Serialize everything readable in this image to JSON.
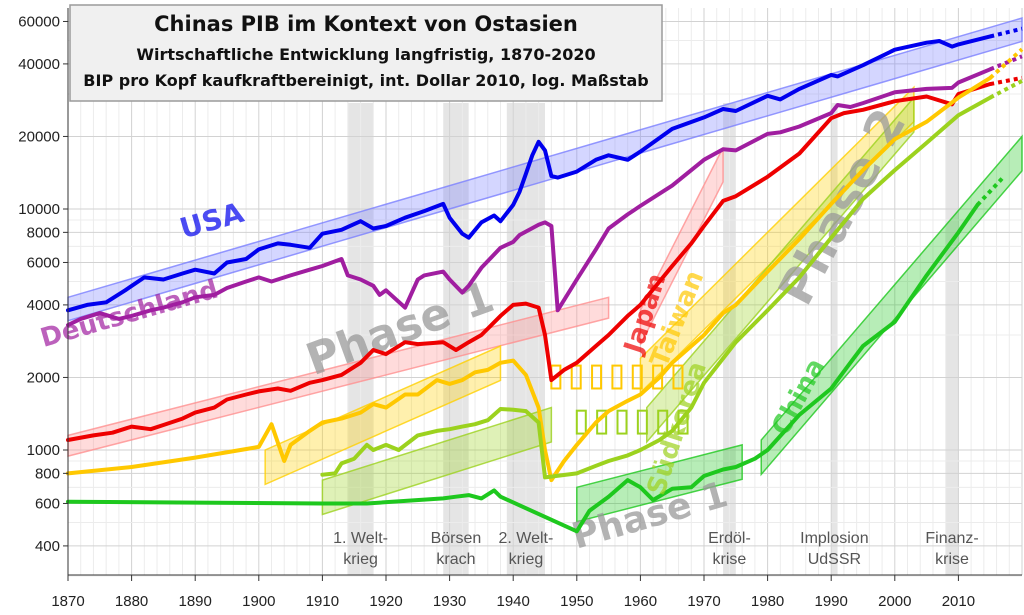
{
  "chart_data": {
    "type": "line",
    "title": "Chinas PIB im Kontext von Ostasien",
    "subtitle_1": "Wirtschaftliche Entwicklung langfristig, 1870-2020",
    "subtitle_2": "BIP pro Kopf kaufkraftbereinigt, int. Dollar 2010, log. Maßstab",
    "xlim": [
      1870,
      2020
    ],
    "ylim": [
      300,
      65000
    ],
    "yscale": "log",
    "grid": true,
    "x_ticks": [
      "1870",
      "1880",
      "1890",
      "1900",
      "1910",
      "1920",
      "1930",
      "1940",
      "1950",
      "1960",
      "1970",
      "1980",
      "1990",
      "2000",
      "2010"
    ],
    "y_ticks": [
      {
        "value": 400,
        "label": "400"
      },
      {
        "value": 600,
        "label": "600"
      },
      {
        "value": 800,
        "label": "800"
      },
      {
        "value": 1000,
        "label": "1000"
      },
      {
        "value": 2000,
        "label": "2000"
      },
      {
        "value": 4000,
        "label": "4000"
      },
      {
        "value": 6000,
        "label": "6000"
      },
      {
        "value": 8000,
        "label": "8000"
      },
      {
        "value": 10000,
        "label": "10000"
      },
      {
        "value": 20000,
        "label": "20000"
      },
      {
        "value": 40000,
        "label": "40000"
      },
      {
        "value": 60000,
        "label": "60000"
      }
    ],
    "events": [
      {
        "start": 1914,
        "end": 1918,
        "label_1": "1. Welt-",
        "label_2": "krieg"
      },
      {
        "start": 1929,
        "end": 1933,
        "label_1": "Börsen",
        "label_2": "krach"
      },
      {
        "start": 1939,
        "end": 1945,
        "label_1": "2. Welt-",
        "label_2": "krieg"
      },
      {
        "start": 1973,
        "end": 1975,
        "label_1": "Erdöl-",
        "label_2": "krise"
      },
      {
        "start": 1990,
        "end": 1991,
        "label_1": "Implosion",
        "label_2": "UdSSR"
      },
      {
        "start": 2008,
        "end": 2010,
        "label_1": "Finanz-",
        "label_2": "krise"
      }
    ],
    "series": [
      {
        "name": "USA",
        "color": "#0000ee",
        "x": [
          1870,
          1873,
          1876,
          1879,
          1882,
          1885,
          1888,
          1890,
          1893,
          1895,
          1898,
          1900,
          1903,
          1905,
          1908,
          1910,
          1913,
          1916,
          1918,
          1920,
          1923,
          1926,
          1929,
          1930,
          1932,
          1933,
          1935,
          1937,
          1938,
          1940,
          1941,
          1942,
          1943,
          1944,
          1945,
          1946,
          1947,
          1950,
          1953,
          1955,
          1958,
          1960,
          1965,
          1970,
          1973,
          1975,
          1980,
          1982,
          1985,
          1990,
          1991,
          1995,
          2000,
          2005,
          2007,
          2009,
          2010,
          2015
        ],
        "y": [
          3800,
          4000,
          4100,
          4600,
          5200,
          5100,
          5400,
          5600,
          5400,
          6000,
          6200,
          6800,
          7200,
          7100,
          6900,
          7900,
          8200,
          8900,
          8300,
          8500,
          9200,
          9800,
          10500,
          9200,
          7900,
          7600,
          8800,
          9400,
          8900,
          10400,
          11800,
          14000,
          16700,
          19000,
          17500,
          13700,
          13500,
          14300,
          16000,
          16700,
          16000,
          17300,
          21500,
          24000,
          26000,
          25500,
          29500,
          28500,
          31500,
          36000,
          35500,
          39500,
          45800,
          49000,
          49800,
          47200,
          48200,
          52000
        ],
        "label_x": 1893,
        "label_y": 8200,
        "label_rotation": -16,
        "label_size": 28
      },
      {
        "name": "Deutschland",
        "color": "#a01ea0",
        "x": [
          1870,
          1872,
          1875,
          1878,
          1880,
          1883,
          1885,
          1888,
          1890,
          1893,
          1895,
          1898,
          1900,
          1902,
          1905,
          1908,
          1910,
          1913,
          1914,
          1916,
          1918,
          1919,
          1920,
          1923,
          1925,
          1926,
          1929,
          1930,
          1932,
          1933,
          1935,
          1938,
          1940,
          1941,
          1944,
          1945,
          1946,
          1947,
          1950,
          1953,
          1955,
          1958,
          1960,
          1965,
          1970,
          1973,
          1975,
          1980,
          1982,
          1985,
          1990,
          1991,
          1993,
          1995,
          2000,
          2005,
          2009,
          2010,
          2015
        ],
        "y": [
          3300,
          3500,
          3700,
          3500,
          3600,
          3800,
          3900,
          4100,
          4300,
          4400,
          4700,
          5000,
          5200,
          5000,
          5300,
          5600,
          5800,
          6200,
          5300,
          5100,
          4800,
          4400,
          4600,
          3900,
          5100,
          5300,
          5500,
          5100,
          4500,
          4800,
          5700,
          6900,
          7300,
          7800,
          8600,
          8800,
          8500,
          3800,
          5100,
          6800,
          8300,
          9500,
          10300,
          12500,
          16000,
          17700,
          17500,
          20500,
          20800,
          22000,
          25000,
          27000,
          26500,
          27500,
          30500,
          31500,
          31800,
          33500,
          38000
        ],
        "label_x": 1880,
        "label_y": 3400,
        "label_rotation": -16,
        "label_size": 26
      },
      {
        "name": "Japan",
        "color": "#ee0000",
        "x": [
          1870,
          1874,
          1877,
          1880,
          1883,
          1885,
          1888,
          1890,
          1893,
          1895,
          1898,
          1900,
          1903,
          1905,
          1908,
          1910,
          1913,
          1916,
          1918,
          1920,
          1923,
          1925,
          1929,
          1931,
          1933,
          1935,
          1938,
          1940,
          1942,
          1944,
          1945,
          1946,
          1948,
          1950,
          1953,
          1955,
          1958,
          1960,
          1963,
          1965,
          1968,
          1970,
          1973,
          1975,
          1980,
          1985,
          1990,
          1992,
          1995,
          2000,
          2005,
          2009,
          2010,
          2015
        ],
        "y": [
          1100,
          1150,
          1180,
          1250,
          1220,
          1270,
          1350,
          1430,
          1500,
          1620,
          1700,
          1750,
          1800,
          1760,
          1900,
          1950,
          2050,
          2300,
          2600,
          2500,
          2800,
          2750,
          2800,
          2600,
          2800,
          3000,
          3600,
          4000,
          4050,
          3900,
          3000,
          1950,
          2150,
          2300,
          2700,
          3000,
          3600,
          4000,
          5000,
          5800,
          7200,
          8500,
          10800,
          11300,
          13600,
          17000,
          23800,
          25000,
          25800,
          28000,
          29300,
          27200,
          30000,
          33000
        ],
        "label_x": 1962,
        "label_y": 3600,
        "label_rotation": -72,
        "label_size": 26
      },
      {
        "name": "Taiwan",
        "color": "#ffc800",
        "x": [
          1870,
          1880,
          1890,
          1900,
          1902,
          1904,
          1905,
          1908,
          1910,
          1913,
          1916,
          1918,
          1920,
          1923,
          1925,
          1928,
          1930,
          1932,
          1934,
          1936,
          1938,
          1940,
          1942,
          1944,
          1945,
          1946,
          1948,
          1950,
          1953,
          1955,
          1958,
          1960,
          1963,
          1965,
          1970,
          1973,
          1975,
          1980,
          1985,
          1990,
          1995,
          2000,
          2005,
          2010,
          2015
        ],
        "y": [
          800,
          850,
          930,
          1030,
          1280,
          900,
          1050,
          1200,
          1300,
          1350,
          1430,
          1550,
          1500,
          1700,
          1700,
          1950,
          1880,
          1950,
          2100,
          2150,
          2300,
          2350,
          2050,
          1500,
          1000,
          750,
          900,
          1050,
          1300,
          1450,
          1600,
          1700,
          2000,
          2300,
          3000,
          3700,
          4000,
          5500,
          7500,
          10500,
          14500,
          19500,
          23000,
          29000,
          35000
        ],
        "label_x": 1967,
        "label_y": 3400,
        "label_rotation": -68,
        "label_size": 26
      },
      {
        "name": "Südkorea",
        "color": "#9cd21e",
        "x": [
          1910,
          1912,
          1913,
          1915,
          1917,
          1918,
          1920,
          1922,
          1925,
          1928,
          1930,
          1932,
          1934,
          1936,
          1938,
          1940,
          1942,
          1944,
          1945,
          1950,
          1953,
          1955,
          1958,
          1960,
          1963,
          1965,
          1968,
          1970,
          1973,
          1975,
          1980,
          1985,
          1990,
          1995,
          2000,
          2005,
          2010,
          2015
        ],
        "y": [
          790,
          800,
          880,
          920,
          1050,
          1000,
          1050,
          1000,
          1150,
          1200,
          1220,
          1250,
          1280,
          1330,
          1480,
          1470,
          1450,
          1300,
          770,
          800,
          860,
          900,
          950,
          1000,
          1100,
          1200,
          1500,
          1900,
          2400,
          2800,
          3800,
          5200,
          7600,
          11000,
          14500,
          18800,
          24500,
          29000
        ],
        "label_x": 1967,
        "label_y": 1200,
        "label_rotation": -72,
        "label_size": 26
      },
      {
        "name": "China",
        "color": "#1ec81e",
        "x": [
          1870,
          1890,
          1910,
          1913,
          1916,
          1917,
          1929,
          1931,
          1933,
          1935,
          1937,
          1938,
          1950,
          1952,
          1955,
          1958,
          1960,
          1962,
          1965,
          1968,
          1970,
          1973,
          1975,
          1978,
          1980,
          1985,
          1990,
          1993,
          1995,
          2000,
          2005,
          2010,
          2013
        ],
        "y": [
          610,
          605,
          600,
          600,
          600,
          600,
          630,
          640,
          650,
          630,
          680,
          640,
          460,
          560,
          640,
          750,
          700,
          620,
          690,
          700,
          780,
          830,
          850,
          920,
          1000,
          1400,
          1800,
          2300,
          2700,
          3400,
          5300,
          8000,
          10400
        ],
        "label_x": 1986,
        "label_y": 1600,
        "label_rotation": -62,
        "label_size": 26
      }
    ],
    "phase_labels": [
      {
        "text": "Phase 1",
        "x": 1923,
        "y": 2800,
        "rotation": -20,
        "size": 44
      },
      {
        "text": "Phase 1",
        "x": 1962,
        "y": 480,
        "rotation": -16,
        "size": 36
      },
      {
        "text": "Phase 2",
        "x": 1994,
        "y": 9500,
        "rotation": -62,
        "size": 48
      }
    ],
    "trend_bands": [
      {
        "color": "#7a80ff",
        "x0": 1870,
        "y0": 4300,
        "x1": 2020,
        "y1": 62000,
        "lower_factor": 0.8
      },
      {
        "color": "#ff9090",
        "x0": 1870,
        "y0": 1150,
        "x1": 1955,
        "y1": 4300,
        "lower_factor": 0.82
      },
      {
        "color": "#ffd000",
        "x0": 1901,
        "y0": 1000,
        "x1": 1938,
        "y1": 2700,
        "lower_factor": 0.72
      },
      {
        "color": "#9cd21e",
        "x0": 1910,
        "y0": 750,
        "x1": 1946,
        "y1": 1500,
        "lower_factor": 0.72
      },
      {
        "color": "#ff9090",
        "x0": 1960,
        "y0": 3800,
        "x1": 1973,
        "y1": 18000,
        "lower_factor": 0.72
      },
      {
        "color": "#ffd000",
        "x0": 1960,
        "y0": 2400,
        "x1": 2003,
        "y1": 32000,
        "lower_factor": 0.72
      },
      {
        "color": "#9cd21e",
        "x0": 1961,
        "y0": 1500,
        "x1": 2003,
        "y1": 29000,
        "lower_factor": 0.72
      },
      {
        "color": "#1ec81e",
        "x0": 1950,
        "y0": 700,
        "x1": 1976,
        "y1": 1050,
        "lower_factor": 0.72
      },
      {
        "color": "#1ec81e",
        "x0": 1979,
        "y0": 1100,
        "x1": 2020,
        "y1": 20000,
        "lower_factor": 0.72
      }
    ],
    "war_gap_boxes": [
      {
        "color": "#ffc800",
        "x0": 1946,
        "x1": 1966,
        "value": 2000
      },
      {
        "color": "#9cd21e",
        "x0": 1950,
        "x1": 1968,
        "value": 1300
      }
    ],
    "dotted_extensions": [
      {
        "color": "#0000ee",
        "x0": 2015,
        "y0": 52000,
        "x1": 2020,
        "y1": 56000
      },
      {
        "color": "#a01ea0",
        "x0": 2015,
        "y0": 38000,
        "x1": 2020,
        "y1": 43000
      },
      {
        "color": "#ee0000",
        "x0": 2015,
        "y0": 33000,
        "x1": 2020,
        "y1": 35000
      },
      {
        "color": "#ffc800",
        "x0": 2015,
        "y0": 35000,
        "x1": 2020,
        "y1": 46000
      },
      {
        "color": "#9cd21e",
        "x0": 2015,
        "y0": 29000,
        "x1": 2020,
        "y1": 34000
      },
      {
        "color": "#1ec81e",
        "x0": 2013,
        "y0": 10400,
        "x1": 2017,
        "y1": 13500
      }
    ]
  }
}
